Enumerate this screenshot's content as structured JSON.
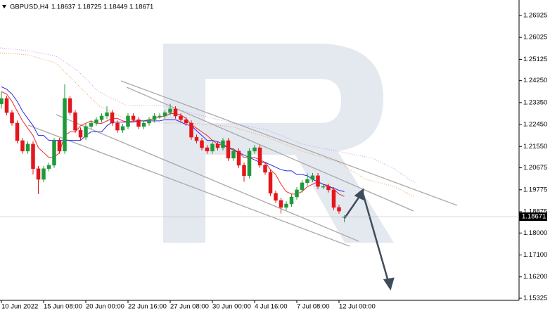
{
  "chart_data": {
    "type": "candlestick",
    "title": "GBPUSD,H4",
    "categories": [
      "10 Jun 2022",
      null,
      null,
      null,
      null,
      null,
      null,
      null,
      "15 Jun 08:00",
      null,
      null,
      null,
      null,
      null,
      null,
      null,
      "20 Jun 00:00",
      null,
      null,
      null,
      null,
      null,
      null,
      null,
      "22 Jun 16:00",
      null,
      null,
      null,
      null,
      null,
      null,
      null,
      "27 Jun 08:00",
      null,
      null,
      null,
      null,
      null,
      null,
      null,
      "30 Jun 00:00",
      null,
      null,
      null,
      null,
      null,
      null,
      null,
      "4 Jul 16:00",
      null,
      null,
      null,
      null,
      null,
      null,
      null,
      "7 Jul 08:00",
      null,
      null,
      null,
      null,
      null,
      null,
      null,
      "12 Jul 00:00",
      null
    ],
    "open": [
      1.233,
      1.2352,
      1.2294,
      1.2251,
      1.2179,
      1.2136,
      1.2165,
      1.2064,
      1.202,
      1.2064,
      1.2078,
      1.2179,
      1.2136,
      1.2352,
      1.2294,
      1.2222,
      1.2193,
      1.2237,
      1.2251,
      1.2265,
      1.228,
      1.2294,
      1.2251,
      1.2222,
      1.2237,
      1.228,
      1.2265,
      1.2237,
      1.2251,
      1.2265,
      1.228,
      1.228,
      1.2294,
      1.2309,
      1.228,
      1.2265,
      1.2251,
      1.2193,
      1.2179,
      1.215,
      1.2136,
      1.2165,
      1.215,
      1.2179,
      1.2107,
      1.2136,
      1.2078,
      1.2035,
      1.2136,
      1.215,
      1.2078,
      1.2049,
      1.1963,
      1.1934,
      1.1905,
      1.1919,
      1.1948,
      1.1977,
      1.2006,
      1.202,
      1.2035,
      1.1991,
      1.1991,
      1.1977,
      1.1905,
      1.18637
    ],
    "high": [
      1.238,
      1.2363,
      1.2305,
      1.2262,
      1.219,
      1.2176,
      1.2176,
      1.2075,
      1.2075,
      1.2089,
      1.219,
      1.219,
      1.241,
      1.2363,
      1.2305,
      1.2233,
      1.2248,
      1.2262,
      1.2276,
      1.2291,
      1.232,
      1.2305,
      1.2262,
      1.2248,
      1.2291,
      1.2291,
      1.2276,
      1.2262,
      1.2276,
      1.2291,
      1.2291,
      1.2305,
      1.233,
      1.232,
      1.2291,
      1.2276,
      1.2262,
      1.2204,
      1.219,
      1.2161,
      1.2176,
      1.2176,
      1.219,
      1.219,
      1.2147,
      1.2147,
      1.2089,
      1.2147,
      1.2161,
      1.2161,
      1.2089,
      1.206,
      1.1974,
      1.1945,
      1.193,
      1.1959,
      1.1988,
      1.2017,
      1.2045,
      1.2046,
      1.2046,
      1.2002,
      1.2002,
      1.1988,
      1.1916,
      1.18725
    ],
    "low": [
      1.231,
      1.2283,
      1.224,
      1.2168,
      1.2125,
      1.2125,
      1.204,
      1.196,
      1.2009,
      1.2053,
      1.2067,
      1.2125,
      1.2125,
      1.2283,
      1.2211,
      1.2182,
      1.2182,
      1.2226,
      1.224,
      1.2254,
      1.2269,
      1.224,
      1.2211,
      1.2211,
      1.2226,
      1.2254,
      1.2226,
      1.2226,
      1.224,
      1.2254,
      1.2269,
      1.2269,
      1.2283,
      1.2269,
      1.2254,
      1.224,
      1.2182,
      1.2168,
      1.2139,
      1.2125,
      1.2125,
      1.2139,
      1.2139,
      1.2096,
      1.2096,
      1.2067,
      1.201,
      1.2024,
      1.2125,
      1.2067,
      1.2038,
      1.1952,
      1.1923,
      1.188,
      1.1894,
      1.1908,
      1.1937,
      1.1966,
      1.1995,
      1.2009,
      1.198,
      1.198,
      1.1966,
      1.1894,
      1.1879,
      1.18449
    ],
    "close": [
      1.2352,
      1.2294,
      1.2251,
      1.2179,
      1.2136,
      1.2165,
      1.2064,
      1.202,
      1.2064,
      1.2078,
      1.2179,
      1.2136,
      1.2352,
      1.2294,
      1.2222,
      1.2193,
      1.2237,
      1.2251,
      1.2265,
      1.228,
      1.2294,
      1.2251,
      1.2222,
      1.2237,
      1.228,
      1.2265,
      1.2237,
      1.2251,
      1.2265,
      1.228,
      1.228,
      1.2294,
      1.2309,
      1.228,
      1.2265,
      1.2251,
      1.2193,
      1.2179,
      1.215,
      1.2136,
      1.2165,
      1.215,
      1.2179,
      1.2107,
      1.2136,
      1.2078,
      1.2035,
      1.2136,
      1.215,
      1.2078,
      1.2049,
      1.1963,
      1.1934,
      1.1905,
      1.1919,
      1.1948,
      1.1977,
      1.2006,
      1.202,
      1.2035,
      1.1991,
      1.1991,
      1.1977,
      1.1905,
      1.189,
      1.18671
    ],
    "up_color": "#1f9a3a",
    "down_color": "#e3161c",
    "series": [
      {
        "color": "#ee2a2a",
        "values": [
          1.238,
          1.237,
          1.234,
          1.23,
          1.226,
          1.223,
          1.22,
          1.215,
          1.213,
          1.211,
          1.211,
          1.213,
          1.22,
          1.2215,
          1.2215,
          1.224,
          1.225,
          1.226,
          1.225,
          1.225,
          1.226,
          1.227,
          1.227,
          1.226,
          1.2255,
          1.226,
          1.226,
          1.226,
          1.2265,
          1.227,
          1.2275,
          1.228,
          1.229,
          1.229,
          1.2285,
          1.227,
          1.2245,
          1.223,
          1.2215,
          1.22,
          1.218,
          1.2165,
          1.216,
          1.215,
          1.2145,
          1.213,
          1.211,
          1.211,
          1.211,
          1.21,
          1.209,
          1.206,
          1.204,
          1.2,
          1.197,
          1.196,
          1.196,
          1.197,
          1.199,
          1.2,
          1.201,
          1.2,
          1.1995,
          1.198,
          1.196,
          1.195
        ]
      },
      {
        "color": "#2b2bea",
        "values": [
          1.24,
          1.239,
          1.237,
          1.234,
          1.23,
          1.227,
          1.224,
          1.22,
          1.22,
          1.218,
          1.218,
          1.218,
          1.218,
          1.218,
          1.218,
          1.218,
          1.22,
          1.2215,
          1.2215,
          1.2215,
          1.224,
          1.2255,
          1.2255,
          1.2255,
          1.2255,
          1.2255,
          1.226,
          1.226,
          1.226,
          1.226,
          1.226,
          1.2265,
          1.2265,
          1.2265,
          1.2255,
          1.2245,
          1.224,
          1.222,
          1.22,
          1.218,
          1.218,
          1.2175,
          1.2165,
          1.215,
          1.214,
          1.213,
          1.212,
          1.211,
          1.21,
          1.209,
          1.209,
          1.208,
          1.207,
          1.206,
          1.2055,
          1.2055,
          1.204,
          1.204,
          1.2035,
          1.202,
          1.201,
          1.2,
          1.199,
          1.1985,
          1.1975,
          1.197
        ]
      }
    ],
    "ylim": [
      1.15238,
      1.2756
    ],
    "yticks": [
      1.26925,
      1.26025,
      1.25125,
      {
        "value": 1.2425,
        "label": "1.24250"
      },
      {
        "value": 1.2335,
        "label": "1.23350"
      },
      {
        "value": 1.2245,
        "label": "1.22450"
      },
      {
        "value": 1.2155,
        "label": "1.21550"
      },
      1.20675,
      1.19775,
      1.18875,
      {
        "value": 1.18,
        "label": "1.18000"
      },
      {
        "value": 1.171,
        "label": "1.17100"
      },
      {
        "value": 1.162,
        "label": "1.16200"
      },
      1.15325
    ],
    "grid": false
  }
}
